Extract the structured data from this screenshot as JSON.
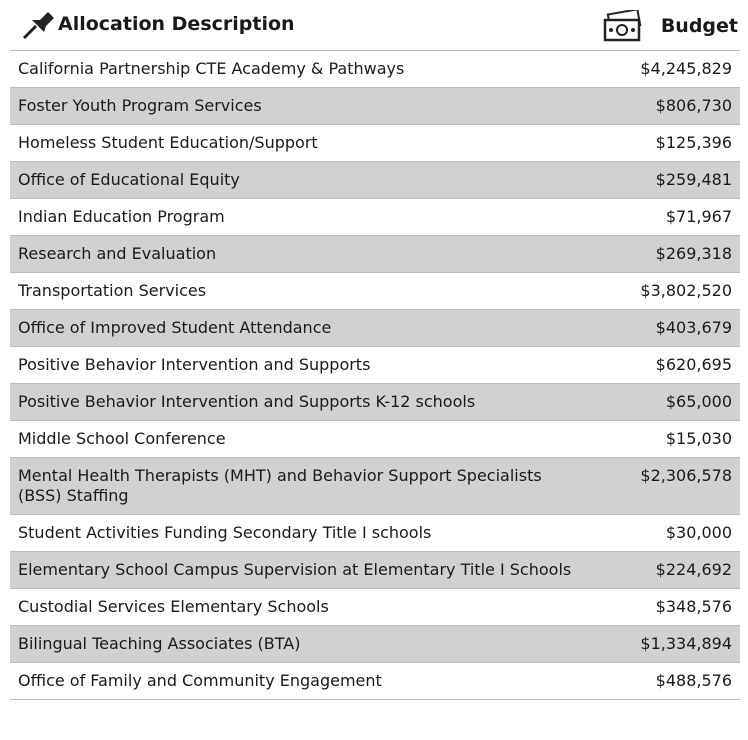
{
  "header": {
    "columns": [
      "Allocation Description",
      "Budget"
    ]
  },
  "table": {
    "rows": [
      [
        "California Partnership CTE Academy & Pathways",
        "$4,245,829"
      ],
      [
        "Foster Youth Program Services",
        "$806,730"
      ],
      [
        "Homeless Student Education/Support",
        "$125,396"
      ],
      [
        "Office of Educational Equity",
        "$259,481"
      ],
      [
        "Indian Education Program",
        "$71,967"
      ],
      [
        "Research and Evaluation",
        "$269,318"
      ],
      [
        "Transportation Services",
        "$3,802,520"
      ],
      [
        "Office of Improved Student Attendance",
        "$403,679"
      ],
      [
        "Positive Behavior Intervention and Supports",
        "$620,695"
      ],
      [
        "Positive Behavior Intervention and Supports K-12 schools",
        "$65,000"
      ],
      [
        "Middle School Conference",
        "$15,030"
      ],
      [
        "Mental Health Therapists (MHT) and  Behavior Support Specialists (BSS) Staffing",
        "$2,306,578"
      ],
      [
        "Student Activities Funding Secondary Title I schools",
        "$30,000"
      ],
      [
        "Elementary School Campus Supervision at Elementary Title I Schools",
        "$224,692"
      ],
      [
        "Custodial Services Elementary Schools",
        "$348,576"
      ],
      [
        "Bilingual Teaching Associates (BTA)",
        "$1,334,894"
      ],
      [
        "Office of Family and Community Engagement",
        "$488,576"
      ]
    ]
  }
}
